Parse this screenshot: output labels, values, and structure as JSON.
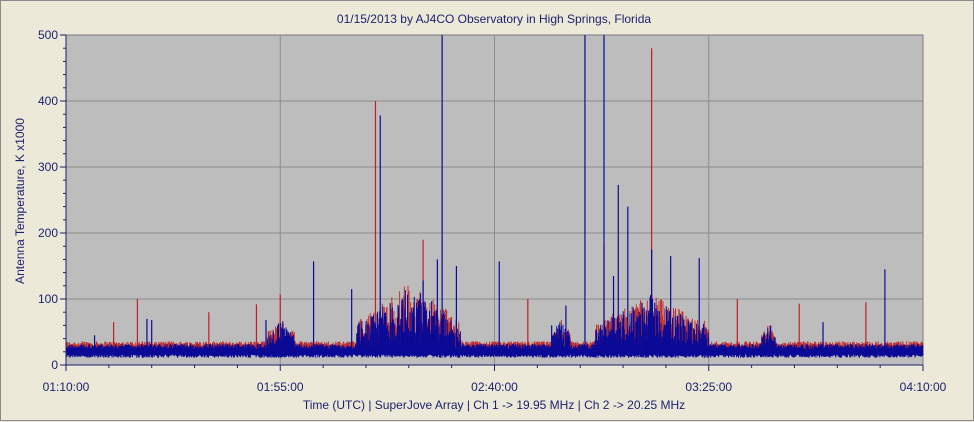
{
  "chart_data": {
    "type": "line",
    "title": "01/15/2013  by  AJ4CO Observatory  in  High Springs, Florida",
    "xlabel": "Time (UTC)  |  SuperJove Array  |  Ch 1 -> 19.95 MHz  |  Ch 2 -> 20.25 MHz",
    "ylabel": "Antenna Temperature, K x1000",
    "x_ticks": [
      "01:10:00",
      "01:55:00",
      "02:40:00",
      "03:25:00",
      "04:10:00"
    ],
    "y_ticks": [
      "0",
      "100",
      "200",
      "300",
      "400",
      "500"
    ],
    "xlim_minutes_utc": [
      70,
      250
    ],
    "ylim": [
      0,
      500
    ],
    "grid": true,
    "baseline": 20,
    "series": [
      {
        "color": "#c02020",
        "baseline": 24,
        "spikes": [
          [
            80,
            65
          ],
          [
            85,
            100
          ],
          [
            100,
            80
          ],
          [
            110,
            92
          ],
          [
            115,
            107
          ],
          [
            135,
            400
          ],
          [
            145,
            190
          ],
          [
            167,
            100
          ],
          [
            183,
            180
          ],
          [
            193,
            480
          ],
          [
            211,
            100
          ],
          [
            224,
            93
          ],
          [
            238,
            95
          ]
        ]
      },
      {
        "color": "#0a0a96",
        "baseline": 20,
        "spikes": [
          [
            76,
            45
          ],
          [
            87,
            70
          ],
          [
            88,
            68
          ],
          [
            112,
            68
          ],
          [
            122,
            157
          ],
          [
            130,
            115
          ],
          [
            136,
            378
          ],
          [
            143,
            87
          ],
          [
            145,
            128
          ],
          [
            148,
            160
          ],
          [
            149,
            500
          ],
          [
            152,
            150
          ],
          [
            161,
            157
          ],
          [
            172,
            60
          ],
          [
            175,
            90
          ],
          [
            179,
            500
          ],
          [
            183,
            500
          ],
          [
            185,
            135
          ],
          [
            186,
            273
          ],
          [
            188,
            240
          ],
          [
            193,
            175
          ],
          [
            197,
            165
          ],
          [
            203,
            162
          ],
          [
            218,
            60
          ],
          [
            229,
            65
          ],
          [
            242,
            145
          ],
          [
            246,
            30
          ]
        ]
      }
    ],
    "activity_regions": [
      [
        112,
        118,
        40
      ],
      [
        131,
        153,
        90
      ],
      [
        172,
        176,
        40
      ],
      [
        181,
        205,
        75
      ],
      [
        216,
        219,
        30
      ]
    ]
  }
}
